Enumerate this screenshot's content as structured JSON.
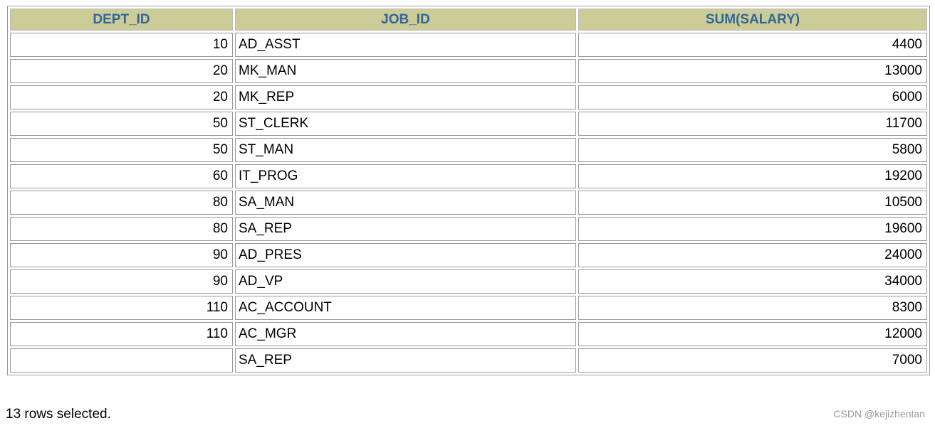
{
  "table": {
    "headers": [
      "DEPT_ID",
      "JOB_ID",
      "SUM(SALARY)"
    ],
    "rows": [
      [
        10,
        "AD_ASST",
        4400
      ],
      [
        20,
        "MK_MAN",
        13000
      ],
      [
        20,
        "MK_REP",
        6000
      ],
      [
        50,
        "ST_CLERK",
        11700
      ],
      [
        50,
        "ST_MAN",
        5800
      ],
      [
        60,
        "IT_PROG",
        19200
      ],
      [
        80,
        "SA_MAN",
        10500
      ],
      [
        80,
        "SA_REP",
        19600
      ],
      [
        90,
        "AD_PRES",
        24000
      ],
      [
        90,
        "AD_VP",
        34000
      ],
      [
        110,
        "AC_ACCOUNT",
        8300
      ],
      [
        110,
        "AC_MGR",
        12000
      ],
      [
        null,
        "SA_REP",
        7000
      ]
    ]
  },
  "footer": "13 rows selected.",
  "watermark": "CSDN @kejizhentan"
}
